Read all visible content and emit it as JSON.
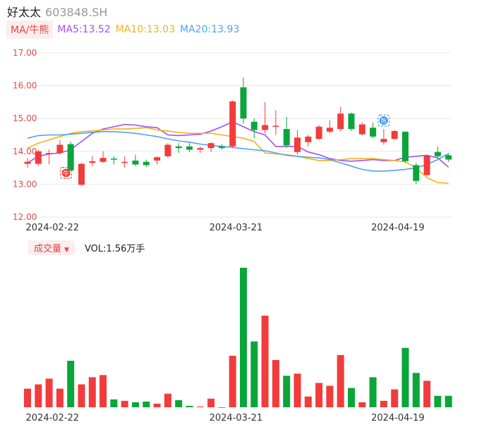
{
  "header": {
    "name": "好太太",
    "code": "603848.SH"
  },
  "ma_toggle": {
    "label": "MA/牛熊"
  },
  "ma_legend": [
    {
      "label": "MA5:13.52",
      "color": "#a24ff0"
    },
    {
      "label": "MA10:13.03",
      "color": "#f2b21c"
    },
    {
      "label": "MA20:13.93",
      "color": "#4fa3f0"
    }
  ],
  "volume_toggle": {
    "label": "成交量",
    "arrow": "▼"
  },
  "volume_text": "VOL:1.56万手",
  "colors": {
    "up": "#f23b3b",
    "down": "#0aa63a",
    "grid": "#e8e8e8",
    "axis_text": "#e84444",
    "date_text": "#333333"
  },
  "chart_data": [
    {
      "type": "candlestick",
      "y_ticks": [
        "17.00",
        "16.00",
        "15.00",
        "14.00",
        "13.00",
        "12.00"
      ],
      "ylim": [
        12.0,
        17.0
      ],
      "x_labels": [
        {
          "label": "2024-02-22",
          "index": 1
        },
        {
          "label": "2024-03-21",
          "index": 18
        },
        {
          "label": "2024-04-19",
          "index": 33
        }
      ],
      "markers": [
        {
          "label": "牛",
          "index": 2,
          "color": "#f23b3b"
        },
        {
          "label": "熊",
          "index": 33,
          "color": "#2b8ff0"
        }
      ],
      "candles": [
        {
          "o": 13.62,
          "c": 13.68,
          "h": 13.8,
          "l": 13.5
        },
        {
          "o": 13.62,
          "c": 14.0,
          "h": 14.05,
          "l": 13.55
        },
        {
          "o": 13.95,
          "c": 13.95,
          "h": 14.05,
          "l": 13.6
        },
        {
          "o": 13.95,
          "c": 14.2,
          "h": 14.35,
          "l": 13.9
        },
        {
          "o": 14.22,
          "c": 13.42,
          "h": 14.3,
          "l": 13.4
        },
        {
          "o": 12.98,
          "c": 13.62,
          "h": 13.65,
          "l": 12.95
        },
        {
          "o": 13.65,
          "c": 13.7,
          "h": 13.85,
          "l": 13.55
        },
        {
          "o": 13.68,
          "c": 13.8,
          "h": 14.0,
          "l": 13.65
        },
        {
          "o": 13.78,
          "c": 13.75,
          "h": 13.85,
          "l": 13.6
        },
        {
          "o": 13.68,
          "c": 13.68,
          "h": 13.85,
          "l": 13.5
        },
        {
          "o": 13.72,
          "c": 13.6,
          "h": 13.9,
          "l": 13.55
        },
        {
          "o": 13.68,
          "c": 13.58,
          "h": 13.75,
          "l": 13.52
        },
        {
          "o": 13.72,
          "c": 13.82,
          "h": 13.85,
          "l": 13.6
        },
        {
          "o": 13.85,
          "c": 14.2,
          "h": 14.25,
          "l": 13.8
        },
        {
          "o": 14.15,
          "c": 14.1,
          "h": 14.25,
          "l": 13.95
        },
        {
          "o": 14.15,
          "c": 14.05,
          "h": 14.25,
          "l": 13.98
        },
        {
          "o": 14.05,
          "c": 14.1,
          "h": 14.15,
          "l": 13.95
        },
        {
          "o": 14.1,
          "c": 14.25,
          "h": 14.28,
          "l": 13.98
        },
        {
          "o": 14.15,
          "c": 14.1,
          "h": 14.22,
          "l": 14.05
        },
        {
          "o": 14.15,
          "c": 15.52,
          "h": 15.55,
          "l": 14.1
        },
        {
          "o": 15.95,
          "c": 15.0,
          "h": 16.25,
          "l": 14.85
        },
        {
          "o": 14.9,
          "c": 14.65,
          "h": 15.0,
          "l": 14.4
        },
        {
          "o": 14.65,
          "c": 14.8,
          "h": 15.5,
          "l": 14.55
        },
        {
          "o": 14.78,
          "c": 14.78,
          "h": 15.25,
          "l": 14.5
        },
        {
          "o": 14.68,
          "c": 14.18,
          "h": 15.05,
          "l": 14.1
        },
        {
          "o": 13.98,
          "c": 14.42,
          "h": 14.65,
          "l": 13.9
        },
        {
          "o": 14.28,
          "c": 14.45,
          "h": 14.5,
          "l": 14.15
        },
        {
          "o": 14.38,
          "c": 14.75,
          "h": 14.8,
          "l": 14.35
        },
        {
          "o": 14.6,
          "c": 14.72,
          "h": 14.95,
          "l": 14.55
        },
        {
          "o": 14.68,
          "c": 15.15,
          "h": 15.35,
          "l": 14.62
        },
        {
          "o": 15.15,
          "c": 14.68,
          "h": 15.18,
          "l": 14.62
        },
        {
          "o": 14.52,
          "c": 14.82,
          "h": 14.88,
          "l": 14.48
        },
        {
          "o": 14.72,
          "c": 14.45,
          "h": 14.88,
          "l": 14.4
        },
        {
          "o": 14.28,
          "c": 14.38,
          "h": 14.68,
          "l": 14.2
        },
        {
          "o": 14.38,
          "c": 14.62,
          "h": 14.65,
          "l": 14.35
        },
        {
          "o": 14.6,
          "c": 13.7,
          "h": 14.6,
          "l": 13.65
        },
        {
          "o": 13.58,
          "c": 13.1,
          "h": 13.65,
          "l": 13.0
        },
        {
          "o": 13.28,
          "c": 13.88,
          "h": 13.9,
          "l": 13.25
        },
        {
          "o": 13.98,
          "c": 13.85,
          "h": 14.15,
          "l": 13.78
        },
        {
          "o": 13.88,
          "c": 13.75,
          "h": 13.95,
          "l": 13.68
        }
      ],
      "ma5": [
        13.65,
        13.85,
        13.92,
        13.95,
        14.05,
        14.3,
        14.55,
        14.68,
        14.75,
        14.82,
        14.8,
        14.75,
        14.72,
        14.5,
        14.48,
        14.5,
        14.52,
        14.62,
        14.75,
        14.9,
        14.75,
        14.6,
        14.5,
        14.15,
        14.15,
        14.15,
        13.98,
        13.9,
        13.78,
        13.72,
        13.7,
        13.72,
        13.75,
        13.72,
        13.72,
        13.82,
        13.85,
        13.88,
        13.8,
        13.52
      ],
      "ma10": [
        14.1,
        14.25,
        14.35,
        14.45,
        14.55,
        14.6,
        14.62,
        14.65,
        14.68,
        14.68,
        14.7,
        14.72,
        14.65,
        14.62,
        14.58,
        14.55,
        14.55,
        14.55,
        14.5,
        14.45,
        14.4,
        14.3,
        13.95,
        13.92,
        13.9,
        13.85,
        13.78,
        13.72,
        13.72,
        13.75,
        13.78,
        13.78,
        13.78,
        13.75,
        13.72,
        13.68,
        13.5,
        13.2,
        13.05,
        13.03
      ],
      "ma20": [
        14.4,
        14.48,
        14.5,
        14.5,
        14.52,
        14.55,
        14.58,
        14.6,
        14.6,
        14.58,
        14.55,
        14.5,
        14.45,
        14.38,
        14.32,
        14.28,
        14.22,
        14.18,
        14.15,
        14.12,
        14.08,
        14.05,
        14.02,
        13.95,
        13.88,
        13.85,
        13.82,
        13.8,
        13.75,
        13.65,
        13.55,
        13.45,
        13.4,
        13.4,
        13.42,
        13.45,
        13.5,
        13.6,
        13.75,
        13.93
      ]
    },
    {
      "type": "bar",
      "title": "成交量",
      "values": [
        26,
        32,
        40,
        26,
        65,
        32,
        42,
        45,
        11,
        9,
        7,
        8,
        5,
        19,
        10,
        2,
        1,
        12,
        0,
        72,
        195,
        92,
        128,
        66,
        44,
        47,
        15,
        34,
        30,
        73,
        27,
        7,
        42,
        9,
        25,
        83,
        48,
        37,
        16,
        16
      ]
    }
  ]
}
